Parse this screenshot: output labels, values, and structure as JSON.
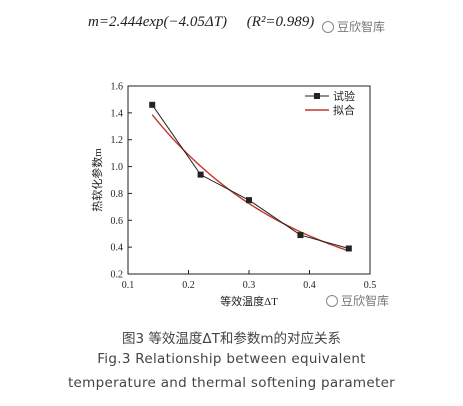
{
  "formula": {
    "text": "m=2.444exp(−4.05ΔT)",
    "r2": "(R²=0.989)"
  },
  "watermark": "豆欣智库",
  "caption": {
    "zh": "图3 等效温度ΔT和参数m的对应关系",
    "en_line1": "Fig.3 Relationship between equivalent",
    "en_line2": "temperature and thermal softening parameter"
  },
  "chart_data": {
    "type": "line",
    "xlabel": "等效温度ΔT",
    "ylabel": "热软化参数m",
    "xlim": [
      0.1,
      0.5
    ],
    "ylim": [
      0.2,
      1.6
    ],
    "xticks": [
      0.1,
      0.2,
      0.3,
      0.4,
      0.5
    ],
    "yticks": [
      0.2,
      0.4,
      0.6,
      0.8,
      1.0,
      1.2,
      1.4,
      1.6
    ],
    "xtick_labels": [
      "0.1",
      "0.2",
      "0.3",
      "0.4",
      "0.5"
    ],
    "ytick_labels": [
      "0.2",
      "0.4",
      "0.6",
      "0.8",
      "1.0",
      "1.2",
      "1.4",
      "1.6"
    ],
    "legend_position": "top-right",
    "series": [
      {
        "name": "试验",
        "color": "#222222",
        "marker": "square",
        "x": [
          0.14,
          0.22,
          0.3,
          0.385,
          0.465
        ],
        "y": [
          1.46,
          0.94,
          0.75,
          0.49,
          0.39
        ]
      },
      {
        "name": "拟合",
        "color": "#c0392b",
        "fit": {
          "a": 2.444,
          "b": -4.05
        },
        "x_range": [
          0.14,
          0.465
        ]
      }
    ]
  }
}
